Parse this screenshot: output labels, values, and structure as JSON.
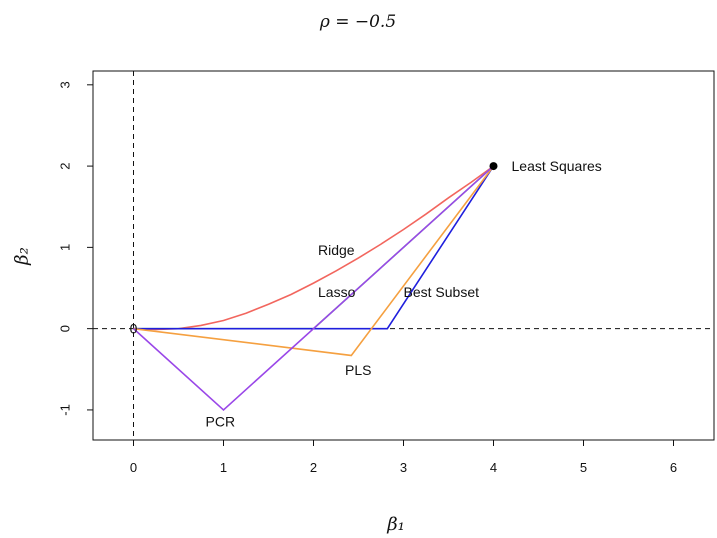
{
  "chart_data": {
    "type": "line",
    "title": "ρ = −0.5",
    "xlabel": "β₁",
    "ylabel": "β₂",
    "xlim": [
      -0.45,
      6.45
    ],
    "ylim": [
      -1.37,
      3.17
    ],
    "x_ticks": [
      0,
      1,
      2,
      3,
      4,
      5,
      6
    ],
    "y_ticks": [
      -1,
      0,
      1,
      2,
      3
    ],
    "x_tick_labels": [
      "0",
      "1",
      "2",
      "3",
      "4",
      "5",
      "6"
    ],
    "y_tick_labels": [
      "-1",
      "0",
      "1",
      "2",
      "3"
    ],
    "grid": false,
    "reference_lines": [
      {
        "orientation": "horizontal",
        "value": 0,
        "style": "dashed"
      },
      {
        "orientation": "vertical",
        "value": 0,
        "style": "dashed"
      }
    ],
    "series": [
      {
        "name": "Ridge",
        "color": "#f2665e",
        "label_at": [
          2.05,
          0.97
        ],
        "points": [
          [
            0,
            0
          ],
          [
            0.25,
            -0.01
          ],
          [
            0.5,
            0.0
          ],
          [
            0.75,
            0.04
          ],
          [
            1.0,
            0.1
          ],
          [
            1.25,
            0.19
          ],
          [
            1.5,
            0.3
          ],
          [
            1.75,
            0.42
          ],
          [
            2.0,
            0.56
          ],
          [
            2.25,
            0.71
          ],
          [
            2.5,
            0.87
          ],
          [
            2.75,
            1.04
          ],
          [
            3.0,
            1.22
          ],
          [
            3.25,
            1.41
          ],
          [
            3.5,
            1.61
          ],
          [
            3.75,
            1.8
          ],
          [
            4.0,
            2.0
          ]
        ]
      },
      {
        "name": "Lasso",
        "color": "#5fcf7a",
        "label_at": [
          2.05,
          0.45
        ],
        "points": [
          [
            0,
            0
          ],
          [
            2.0,
            0
          ],
          [
            4.0,
            2.0
          ]
        ]
      },
      {
        "name": "Best Subset",
        "color": "#1f1fdd",
        "label_at": [
          3.0,
          0.45
        ],
        "points": [
          [
            0,
            0
          ],
          [
            2.82,
            0
          ],
          [
            4.0,
            2.0
          ]
        ]
      },
      {
        "name": "PLS",
        "color": "#f5a040",
        "label_at": [
          2.35,
          -0.51
        ],
        "points": [
          [
            0,
            0
          ],
          [
            2.42,
            -0.33
          ],
          [
            4.0,
            2.0
          ]
        ]
      },
      {
        "name": "PCR",
        "color": "#9a47e8",
        "label_at": [
          0.8,
          -1.14
        ],
        "points": [
          [
            0,
            0
          ],
          [
            1.0,
            -1.0
          ],
          [
            4.0,
            2.0
          ]
        ]
      }
    ],
    "annotations": [
      {
        "text": "Least Squares",
        "point": [
          4.0,
          2.0
        ],
        "label_at": [
          4.2,
          2.0
        ]
      },
      {
        "text": "0",
        "point": [
          0,
          0
        ],
        "label_at": [
          0,
          0
        ]
      }
    ]
  }
}
